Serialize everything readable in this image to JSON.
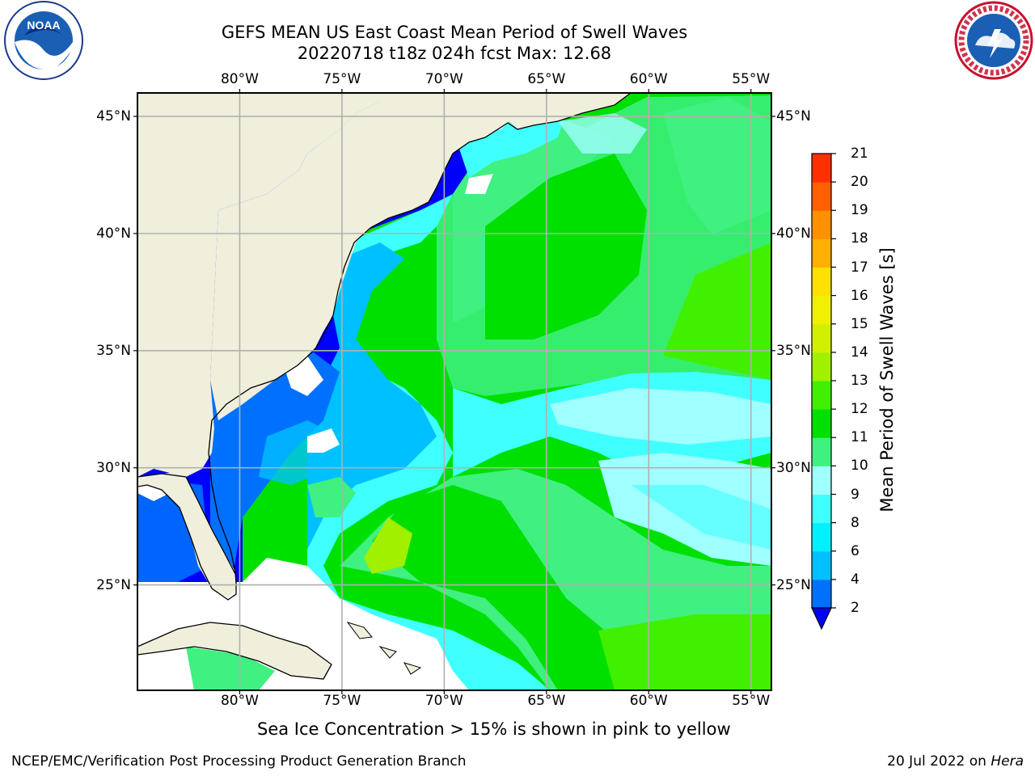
{
  "title": {
    "line1": "GEFS MEAN US East Coast Mean Period of Swell Waves",
    "line2": "20220718 t18z 024h fcst   Max: 12.68"
  },
  "map": {
    "lon_range": [
      -85,
      -54
    ],
    "lat_range": [
      20.5,
      46
    ],
    "lon_ticks": [
      "80°W",
      "75°W",
      "70°W",
      "65°W",
      "60°W",
      "55°W"
    ],
    "lat_ticks": [
      "45°N",
      "40°N",
      "35°N",
      "30°N",
      "25°N"
    ],
    "grid": true,
    "land_color": "#efefdc"
  },
  "colorbar": {
    "label": "Mean Period of Swell Waves [s]",
    "ticks": [
      "2",
      "4",
      "6",
      "8",
      "9",
      "10",
      "11",
      "12",
      "13",
      "14",
      "15",
      "16",
      "17",
      "18",
      "19",
      "20",
      "21"
    ],
    "colors": [
      "#0070ff",
      "#00c0ff",
      "#00f0ff",
      "#40ffff",
      "#a0ffff",
      "#40f080",
      "#00e000",
      "#40f000",
      "#a0f000",
      "#d0f000",
      "#f0f000",
      "#ffe000",
      "#ffb000",
      "#ff9000",
      "#ff6000",
      "#ff3000"
    ],
    "under_color": "#0000ff"
  },
  "footer": {
    "note": "Sea Ice Concentration > 15% is shown in pink to yellow",
    "credit_left": "NCEP/EMC/Verification Post Processing Product Generation Branch",
    "date": "20 Jul 2022 on ",
    "machine": "Hera"
  },
  "logos": {
    "left": "NOAA",
    "right_text": "NATIONAL WEATHER SERVICE"
  }
}
